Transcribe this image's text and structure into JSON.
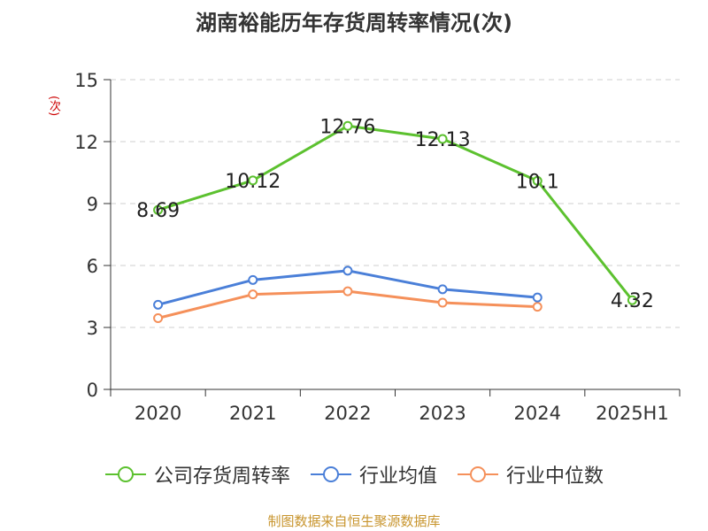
{
  "chart_data": {
    "type": "line",
    "title": "湖南裕能历年存货周转率情况(次)",
    "unit_label": "(次)",
    "categories": [
      "2020",
      "2021",
      "2022",
      "2023",
      "2024",
      "2025H1"
    ],
    "ylim": [
      0,
      15
    ],
    "yticks": [
      0,
      3,
      6,
      9,
      12,
      15
    ],
    "grid": true,
    "legend_position": "bottom",
    "series": [
      {
        "name": "公司存货周转率",
        "color": "#5cc12f",
        "values": [
          8.69,
          10.12,
          12.76,
          12.13,
          10.1,
          4.32
        ],
        "labels": [
          "8.69",
          "10.12",
          "12.76",
          "12.13",
          "10.1",
          "4.32"
        ]
      },
      {
        "name": "行业均值",
        "color": "#4a7fd8",
        "values": [
          4.1,
          5.3,
          5.75,
          4.85,
          4.45,
          null
        ]
      },
      {
        "name": "行业中位数",
        "color": "#f5905a",
        "values": [
          3.45,
          4.6,
          4.75,
          4.2,
          4.0,
          null
        ]
      }
    ]
  },
  "source": "制图数据来自恒生聚源数据库"
}
